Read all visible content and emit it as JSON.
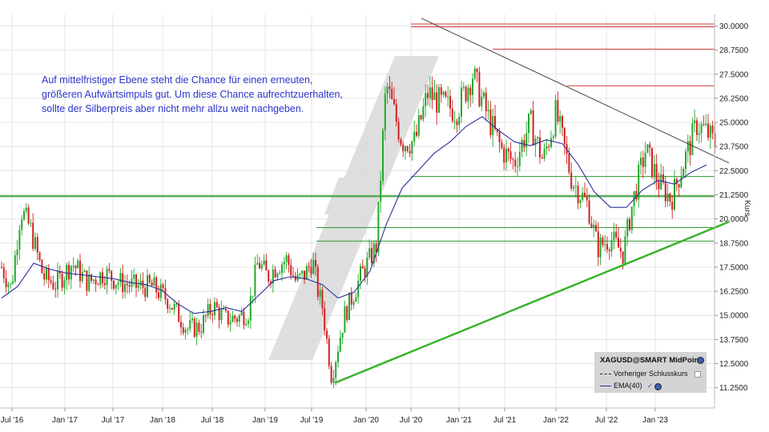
{
  "chart_data": {
    "type": "candlestick",
    "symbol": "XAGUSD@SMART MidPoint",
    "ylabel": "Kurs",
    "ylim": [
      10.2,
      30.6
    ],
    "y_ticks": [
      "30.0000",
      "28.7500",
      "27.5000",
      "26.2500",
      "25.0000",
      "23.7500",
      "22.5000",
      "21.2500",
      "20.0000",
      "18.7500",
      "17.5000",
      "16.2500",
      "15.0000",
      "13.7500",
      "12.5000",
      "11.2500"
    ],
    "x_ticks": [
      "Jul '16",
      "Jan '17",
      "Jul '17",
      "Jan '18",
      "Jul '18",
      "Jan '19",
      "Jul '19",
      "Jan '20",
      "Jul '20",
      "Jan '21",
      "Jul '21",
      "Jan '22",
      "Jul '22",
      "Jan '23"
    ],
    "annotation": [
      "Auf mittelfristiger Ebene steht die Chance für einen erneuten,",
      "größeren Aufwärtsimpuls gut. Um diese Chance aufrechtzuerhalten,",
      "sollte der Silberpreis aber nicht mehr allzu weit nachgeben."
    ],
    "legend": {
      "title": "XAGUSD@SMART MidPoint",
      "items": [
        "Vorheriger Schlusskurs",
        "EMA(40)"
      ]
    },
    "price_path": [
      [
        0.0,
        17.5
      ],
      [
        0.03,
        16.4
      ],
      [
        0.06,
        20.5
      ],
      [
        0.09,
        19.5
      ],
      [
        0.13,
        17.0
      ],
      [
        0.17,
        16.6
      ],
      [
        0.22,
        17.7
      ],
      [
        0.27,
        16.7
      ],
      [
        0.32,
        17.2
      ],
      [
        0.37,
        16.7
      ],
      [
        0.42,
        16.5
      ],
      [
        0.47,
        16.5
      ],
      [
        0.52,
        15.8
      ],
      [
        0.58,
        14.3
      ],
      [
        0.62,
        14.4
      ],
      [
        0.66,
        15.5
      ],
      [
        0.7,
        14.8
      ],
      [
        0.74,
        14.9
      ],
      [
        0.77,
        15.2
      ],
      [
        0.8,
        17.8
      ],
      [
        0.83,
        17.0
      ],
      [
        0.86,
        17.6
      ],
      [
        0.89,
        17.9
      ],
      [
        0.92,
        16.7
      ],
      [
        0.95,
        17.2
      ],
      [
        0.97,
        17.9
      ],
      [
        0.99,
        16.0
      ],
      [
        1.0,
        15.6
      ],
      [
        1.03,
        11.8
      ],
      [
        1.07,
        15.0
      ],
      [
        1.12,
        17.0
      ],
      [
        1.17,
        18.6
      ],
      [
        1.2,
        27.0
      ],
      [
        1.25,
        24.0
      ],
      [
        1.29,
        24.0
      ],
      [
        1.33,
        26.5
      ],
      [
        1.37,
        26.0
      ],
      [
        1.42,
        25.6
      ],
      [
        1.47,
        27.5
      ],
      [
        1.52,
        25.2
      ],
      [
        1.56,
        23.6
      ],
      [
        1.6,
        22.9
      ],
      [
        1.65,
        25.0
      ],
      [
        1.69,
        23.0
      ],
      [
        1.73,
        25.5
      ],
      [
        1.78,
        22.0
      ],
      [
        1.83,
        20.7
      ],
      [
        1.86,
        18.5
      ],
      [
        1.9,
        19.0
      ],
      [
        1.94,
        18.2
      ],
      [
        1.97,
        20.9
      ],
      [
        2.01,
        23.6
      ],
      [
        2.05,
        21.9
      ],
      [
        2.09,
        21.0
      ],
      [
        2.13,
        23.0
      ],
      [
        2.17,
        24.9
      ],
      [
        2.2,
        24.5
      ],
      [
        2.23,
        23.8
      ]
    ],
    "ema_40": [
      [
        0.0,
        15.9
      ],
      [
        0.05,
        16.5
      ],
      [
        0.1,
        17.7
      ],
      [
        0.15,
        17.4
      ],
      [
        0.2,
        17.2
      ],
      [
        0.25,
        17.1
      ],
      [
        0.3,
        17.0
      ],
      [
        0.35,
        16.9
      ],
      [
        0.4,
        16.7
      ],
      [
        0.45,
        16.6
      ],
      [
        0.5,
        16.3
      ],
      [
        0.55,
        15.6
      ],
      [
        0.6,
        15.1
      ],
      [
        0.65,
        15.2
      ],
      [
        0.7,
        15.4
      ],
      [
        0.75,
        15.2
      ],
      [
        0.8,
        16.0
      ],
      [
        0.85,
        16.8
      ],
      [
        0.9,
        17.0
      ],
      [
        0.95,
        16.9
      ],
      [
        1.0,
        16.6
      ],
      [
        1.05,
        15.9
      ],
      [
        1.1,
        16.2
      ],
      [
        1.15,
        17.3
      ],
      [
        1.2,
        19.7
      ],
      [
        1.25,
        21.6
      ],
      [
        1.3,
        22.5
      ],
      [
        1.35,
        23.4
      ],
      [
        1.4,
        24.0
      ],
      [
        1.45,
        24.8
      ],
      [
        1.5,
        25.3
      ],
      [
        1.55,
        24.6
      ],
      [
        1.6,
        24.0
      ],
      [
        1.65,
        23.8
      ],
      [
        1.7,
        24.1
      ],
      [
        1.75,
        23.9
      ],
      [
        1.8,
        22.8
      ],
      [
        1.85,
        21.4
      ],
      [
        1.9,
        20.6
      ],
      [
        1.95,
        20.6
      ],
      [
        2.0,
        21.5
      ],
      [
        2.05,
        22.0
      ],
      [
        2.1,
        21.8
      ],
      [
        2.15,
        22.4
      ],
      [
        2.2,
        22.8
      ]
    ],
    "horizontal_levels": [
      {
        "y": 30.1,
        "color": "#d63a3a"
      },
      {
        "y": 29.95,
        "color": "#d63a3a"
      },
      {
        "y": 28.8,
        "color": "#d63a3a"
      },
      {
        "y": 26.9,
        "color": "#d63a3a"
      },
      {
        "y": 22.2,
        "color": "#2e9c2e"
      },
      {
        "y": 21.2,
        "color": "#2e9c2e"
      },
      {
        "y": 21.15,
        "color": "#2e9c2e"
      },
      {
        "y": 19.55,
        "color": "#2e9c2e"
      },
      {
        "y": 18.85,
        "color": "#2e9c2e"
      }
    ],
    "trendlines": [
      {
        "from": [
          1.04,
          11.5
        ],
        "to": [
          2.27,
          19.85
        ],
        "color": "#38b32a",
        "width": 2.5
      },
      {
        "from": [
          1.31,
          30.4
        ],
        "to": [
          2.27,
          22.9
        ],
        "color": "#444444",
        "width": 1
      }
    ],
    "colors": {
      "up": "#22a82a",
      "down": "#d32020",
      "ema": "#2b2f9c",
      "grid": "#e4e4e4"
    }
  }
}
